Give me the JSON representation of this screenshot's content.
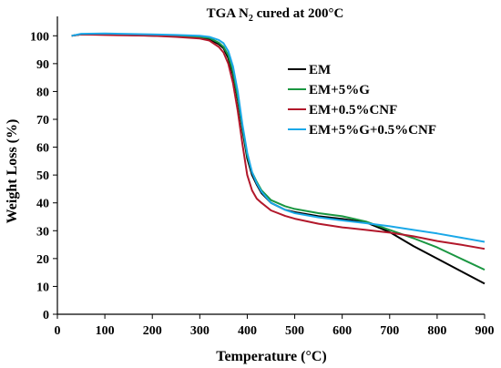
{
  "chart_data": {
    "type": "line",
    "title": "TGA N₂ cured at 200°C",
    "title_parts": {
      "main": "TGA N",
      "sub": "2",
      "rest": " cured at 200°C"
    },
    "xlabel": "Temperature  (°C)",
    "ylabel": "Weight Loss (%)",
    "xlim": [
      0,
      900
    ],
    "ylim": [
      0,
      105
    ],
    "xticks": [
      0,
      100,
      200,
      300,
      400,
      500,
      600,
      700,
      800,
      900
    ],
    "yticks": [
      0,
      10,
      20,
      30,
      40,
      50,
      60,
      70,
      80,
      90,
      100
    ],
    "grid": false,
    "legend_position": "right",
    "series": [
      {
        "name": "EM",
        "color": "#000000",
        "x": [
          30,
          50,
          100,
          200,
          250,
          300,
          320,
          340,
          350,
          360,
          370,
          380,
          390,
          400,
          410,
          420,
          430,
          450,
          480,
          500,
          550,
          600,
          650,
          700,
          750,
          800,
          850,
          900
        ],
        "y": [
          100,
          100.5,
          100.5,
          100,
          99.8,
          99.3,
          98.8,
          97,
          95.5,
          92,
          86,
          77,
          66,
          56,
          50,
          46.5,
          43.5,
          40,
          37.5,
          36.7,
          35.2,
          34.2,
          33,
          29.5,
          24.5,
          20,
          15.5,
          11
        ]
      },
      {
        "name": "EM+5%G",
        "color": "#1a9641",
        "x": [
          30,
          50,
          100,
          200,
          250,
          300,
          320,
          340,
          350,
          360,
          370,
          380,
          390,
          400,
          410,
          420,
          430,
          450,
          480,
          500,
          550,
          600,
          650,
          700,
          750,
          800,
          850,
          900
        ],
        "y": [
          100,
          100.5,
          100.5,
          100.2,
          100,
          99.6,
          99.2,
          97.5,
          96,
          93,
          87,
          78,
          67,
          57,
          51,
          47.5,
          44.5,
          41,
          38.8,
          37.8,
          36.3,
          35.2,
          33.3,
          30.3,
          27.3,
          24,
          20,
          16
        ]
      },
      {
        "name": "EM+0.5%CNF",
        "color": "#b2182b",
        "x": [
          30,
          50,
          100,
          200,
          250,
          300,
          320,
          340,
          350,
          360,
          370,
          380,
          390,
          400,
          410,
          420,
          430,
          450,
          480,
          500,
          550,
          600,
          650,
          700,
          750,
          800,
          850,
          900
        ],
        "y": [
          100,
          100.5,
          100.3,
          100,
          99.6,
          99,
          98.3,
          96,
          94,
          90,
          83,
          73,
          61,
          50,
          44.5,
          41.5,
          40,
          37.3,
          35.3,
          34.3,
          32.5,
          31.2,
          30.3,
          29.3,
          28,
          26.3,
          25,
          23.5
        ]
      },
      {
        "name": "EM+5%G+0.5%CNF",
        "color": "#1ba8e8",
        "x": [
          30,
          50,
          100,
          200,
          250,
          300,
          320,
          340,
          350,
          360,
          370,
          380,
          390,
          400,
          410,
          420,
          430,
          450,
          480,
          500,
          550,
          600,
          650,
          700,
          750,
          800,
          850,
          900
        ],
        "y": [
          100,
          100.7,
          100.8,
          100.5,
          100.3,
          100,
          99.6,
          98.5,
          97.3,
          94.5,
          89,
          80,
          68,
          58,
          51,
          47,
          44,
          40,
          37.5,
          36.3,
          34.8,
          33.7,
          32.7,
          31.6,
          30.3,
          29,
          27.5,
          26
        ]
      }
    ]
  }
}
